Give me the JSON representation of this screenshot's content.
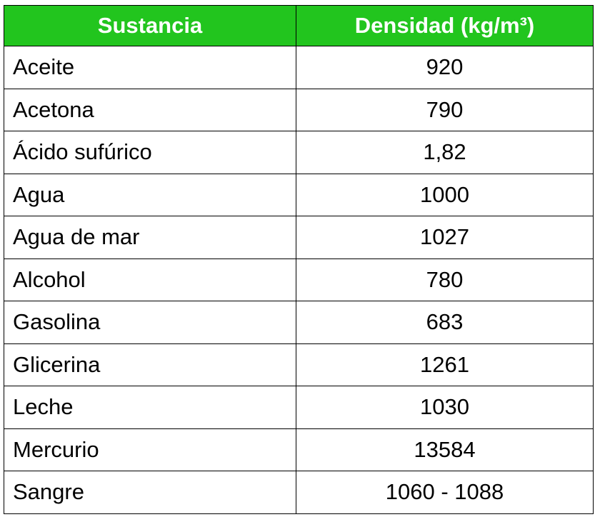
{
  "table": {
    "header_color": "#22c51e",
    "columns": [
      "Sustancia",
      "Densidad (kg/m³)"
    ],
    "rows": [
      {
        "sustancia": "Aceite",
        "densidad": "920"
      },
      {
        "sustancia": "Acetona",
        "densidad": "790"
      },
      {
        "sustancia": "Ácido sufúrico",
        "densidad": "1,82"
      },
      {
        "sustancia": "Agua",
        "densidad": "1000"
      },
      {
        "sustancia": "Agua de mar",
        "densidad": "1027"
      },
      {
        "sustancia": "Alcohol",
        "densidad": "780"
      },
      {
        "sustancia": "Gasolina",
        "densidad": "683"
      },
      {
        "sustancia": "Glicerina",
        "densidad": "1261"
      },
      {
        "sustancia": "Leche",
        "densidad": "1030"
      },
      {
        "sustancia": "Mercurio",
        "densidad": "13584"
      },
      {
        "sustancia": "Sangre",
        "densidad": "1060 - 1088"
      }
    ]
  }
}
